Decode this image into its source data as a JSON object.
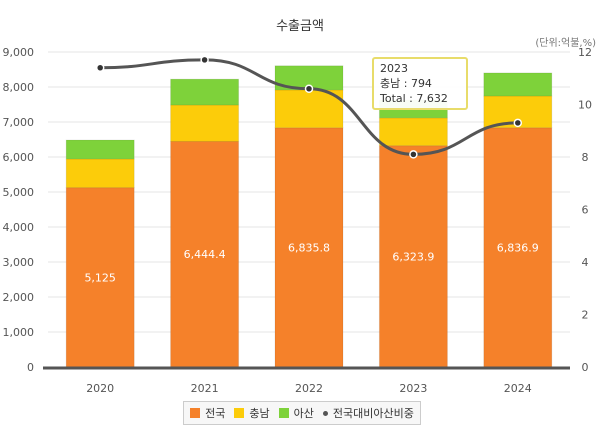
{
  "chart_data": {
    "type": "bar",
    "stacked": true,
    "title": "수출금액",
    "unit_label": "(단위:억불,%)",
    "categories": [
      "2020",
      "2021",
      "2022",
      "2023",
      "2024"
    ],
    "series": [
      {
        "name": "전국",
        "color": "#f5812a",
        "values": [
          5125,
          6444.4,
          6835.8,
          6323.9,
          6836.9
        ],
        "labels": [
          "5,125",
          "6,444.4",
          "6,835.8",
          "6,323.9",
          "6,836.9"
        ]
      },
      {
        "name": "충남",
        "color": "#fccc0a",
        "values": [
          820,
          1040,
          1080,
          794,
          905
        ]
      },
      {
        "name": "아산",
        "color": "#7ed23a",
        "values": [
          540,
          740,
          690,
          514,
          660
        ]
      },
      {
        "name": "전국대비아산비중",
        "type": "line",
        "axis": "right",
        "color": "#555555",
        "values": [
          11.4,
          11.7,
          10.6,
          8.1,
          9.3
        ]
      }
    ],
    "yleft": {
      "range": [
        0,
        9000
      ],
      "ticks": [
        "0",
        "1,000",
        "2,000",
        "3,000",
        "4,000",
        "5,000",
        "6,000",
        "7,000",
        "8,000",
        "9,000"
      ]
    },
    "yright": {
      "range": [
        0,
        12
      ],
      "ticks": [
        "0",
        "2",
        "4",
        "6",
        "8",
        "10",
        "12"
      ]
    },
    "grid": true,
    "legend": "bottom",
    "tooltip": {
      "year": "2023",
      "line1": "충남 : 794",
      "line2": "Total : 7,632"
    }
  }
}
